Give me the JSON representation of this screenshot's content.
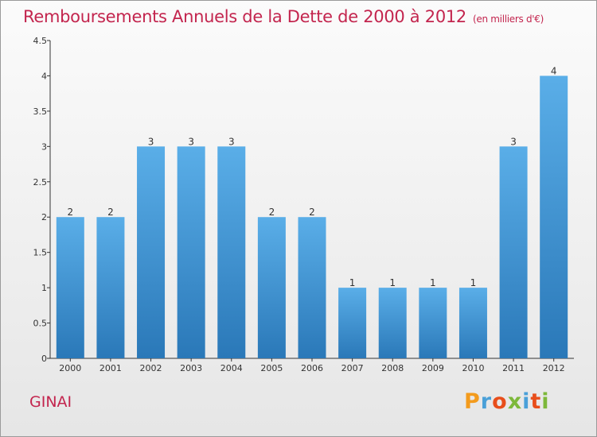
{
  "header": {
    "title": "Remboursements Annuels de la Dette de 2000 à 2012",
    "unit": "(en milliers d'€)"
  },
  "footer": {
    "commune": "GINAI",
    "logo": "Proxiti",
    "logo_colors": [
      "#f39b1d",
      "#4aa0d8",
      "#e84e1b",
      "#7db83a",
      "#4aa0d8",
      "#e84e1b",
      "#7db83a"
    ]
  },
  "colors": {
    "title": "#c3254e",
    "bar_top": "#5aaee8",
    "bar_bottom": "#2a78b8",
    "axis": "#333333"
  },
  "chart_data": {
    "type": "bar",
    "categories": [
      "2000",
      "2001",
      "2002",
      "2003",
      "2004",
      "2005",
      "2006",
      "2007",
      "2008",
      "2009",
      "2010",
      "2011",
      "2012"
    ],
    "values": [
      2,
      2,
      3,
      3,
      3,
      2,
      2,
      1,
      1,
      1,
      1,
      3,
      4
    ],
    "title": "Remboursements Annuels de la Dette de 2000 à 2012",
    "ylabel": "",
    "xlabel": "",
    "ylim": [
      0,
      4.5
    ],
    "yticks": [
      0,
      0.5,
      1,
      1.5,
      2,
      2.5,
      3,
      3.5,
      4,
      4.5
    ],
    "ytick_labels": [
      "0",
      "0.5",
      "1",
      "1.5",
      "2",
      "2.5",
      "3",
      "3.5",
      "4",
      "4.5"
    ],
    "grid": false
  }
}
